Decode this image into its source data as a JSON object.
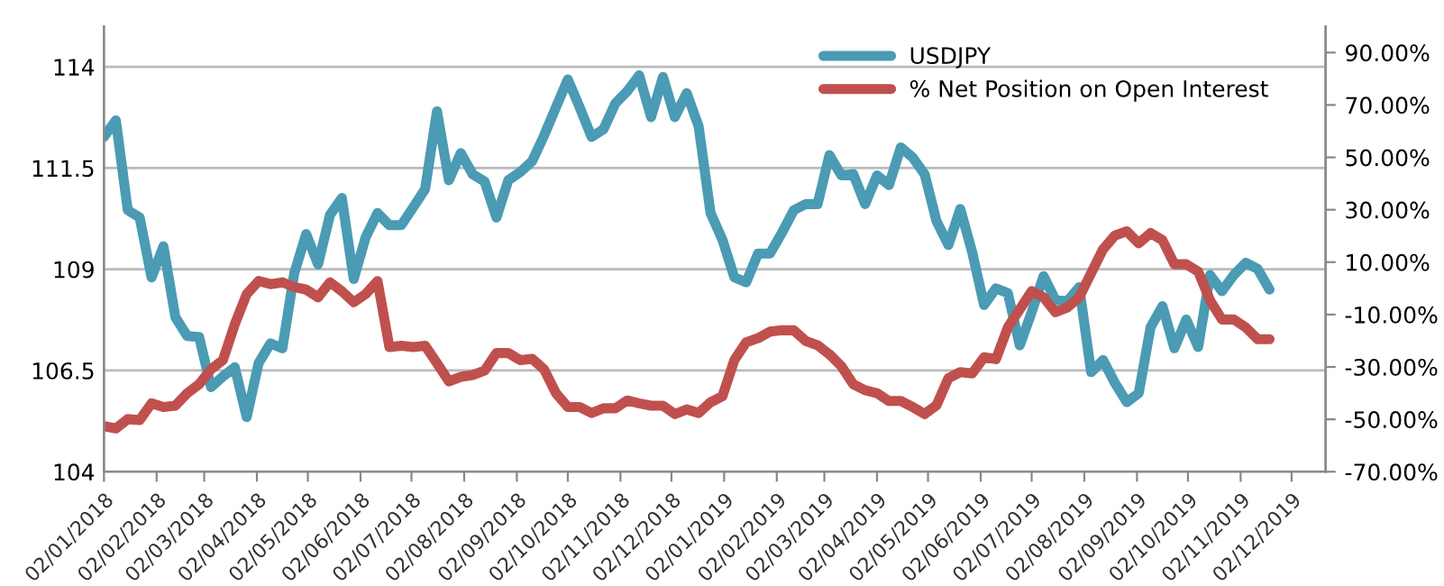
{
  "chart_data": {
    "type": "line",
    "x": [
      "2018-01-02",
      "2018-01-09",
      "2018-01-16",
      "2018-01-23",
      "2018-01-30",
      "2018-02-06",
      "2018-02-13",
      "2018-02-20",
      "2018-02-27",
      "2018-03-06",
      "2018-03-13",
      "2018-03-20",
      "2018-03-27",
      "2018-04-03",
      "2018-04-10",
      "2018-04-17",
      "2018-04-24",
      "2018-05-01",
      "2018-05-08",
      "2018-05-15",
      "2018-05-22",
      "2018-05-29",
      "2018-06-05",
      "2018-06-12",
      "2018-06-19",
      "2018-06-26",
      "2018-07-03",
      "2018-07-10",
      "2018-07-17",
      "2018-07-24",
      "2018-07-31",
      "2018-08-07",
      "2018-08-14",
      "2018-08-21",
      "2018-08-28",
      "2018-09-04",
      "2018-09-11",
      "2018-09-18",
      "2018-09-25",
      "2018-10-02",
      "2018-10-09",
      "2018-10-16",
      "2018-10-23",
      "2018-10-30",
      "2018-11-06",
      "2018-11-13",
      "2018-11-20",
      "2018-11-27",
      "2018-12-04",
      "2018-12-11",
      "2018-12-18",
      "2018-12-25",
      "2019-01-01",
      "2019-01-08",
      "2019-01-15",
      "2019-01-22",
      "2019-01-29",
      "2019-02-05",
      "2019-02-12",
      "2019-02-19",
      "2019-02-26",
      "2019-03-05",
      "2019-03-12",
      "2019-03-19",
      "2019-03-26",
      "2019-04-02",
      "2019-04-09",
      "2019-04-16",
      "2019-04-23",
      "2019-04-30",
      "2019-05-07",
      "2019-05-14",
      "2019-05-21",
      "2019-05-28",
      "2019-06-04",
      "2019-06-11",
      "2019-06-18",
      "2019-06-25",
      "2019-07-02",
      "2019-07-09",
      "2019-07-16",
      "2019-07-23",
      "2019-07-30",
      "2019-08-06",
      "2019-08-13",
      "2019-08-20",
      "2019-08-27",
      "2019-09-03",
      "2019-09-10",
      "2019-09-17",
      "2019-09-24",
      "2019-10-01",
      "2019-10-08",
      "2019-10-15",
      "2019-10-22",
      "2019-10-29",
      "2019-11-05",
      "2019-11-12",
      "2019-11-19"
    ],
    "series": [
      {
        "name": "USDJPY",
        "color": "#4a9bb3",
        "values": [
          112.27,
          112.68,
          110.46,
          110.28,
          108.8,
          109.57,
          107.82,
          107.35,
          107.33,
          106.09,
          106.35,
          106.58,
          105.35,
          106.68,
          107.17,
          107.05,
          108.9,
          109.87,
          109.12,
          110.34,
          110.76,
          108.76,
          109.79,
          110.39,
          110.09,
          110.09,
          110.53,
          110.98,
          112.9,
          111.2,
          111.87,
          111.35,
          111.17,
          110.28,
          111.2,
          111.4,
          111.67,
          112.3,
          113.0,
          113.69,
          113.0,
          112.27,
          112.46,
          113.1,
          113.4,
          113.79,
          112.76,
          113.75,
          112.76,
          113.35,
          112.53,
          110.39,
          109.73,
          108.8,
          108.68,
          109.39,
          109.39,
          109.9,
          110.46,
          110.61,
          110.61,
          111.82,
          111.32,
          111.35,
          110.61,
          111.32,
          111.08,
          112.01,
          111.76,
          111.35,
          110.19,
          109.6,
          110.49,
          109.42,
          108.12,
          108.53,
          108.41,
          107.12,
          107.94,
          108.83,
          108.24,
          108.21,
          108.56,
          106.46,
          106.76,
          106.19,
          105.72,
          105.94,
          107.57,
          108.09,
          107.05,
          107.76,
          107.08,
          108.86,
          108.46,
          108.86,
          109.16,
          109.01,
          108.5
        ]
      },
      {
        "name": "% Net Position on Open Interest",
        "color": "#c0504d",
        "axis": "y2",
        "values": [
          -52.6,
          -53.5,
          -49.9,
          -50.3,
          -43.9,
          -45.3,
          -44.8,
          -40.0,
          -36.6,
          -30.9,
          -27.4,
          -13.7,
          -2.2,
          2.8,
          1.6,
          2.3,
          0.5,
          -0.5,
          -3.4,
          2.3,
          -1.1,
          -5.3,
          -2.2,
          2.8,
          -22.4,
          -21.9,
          -22.4,
          -21.9,
          -28.6,
          -35.5,
          -33.8,
          -33.1,
          -31.4,
          -24.7,
          -24.7,
          -27.4,
          -26.9,
          -30.9,
          -40.0,
          -45.3,
          -45.3,
          -47.6,
          -45.8,
          -45.8,
          -42.8,
          -43.9,
          -44.8,
          -44.8,
          -48.0,
          -46.2,
          -47.6,
          -43.5,
          -41.2,
          -27.4,
          -20.6,
          -19.0,
          -16.5,
          -16.0,
          -16.0,
          -20.1,
          -21.7,
          -25.2,
          -29.7,
          -36.6,
          -38.9,
          -40.0,
          -43.0,
          -43.0,
          -45.3,
          -48.0,
          -44.6,
          -34.3,
          -32.0,
          -32.5,
          -26.3,
          -27.0,
          -14.9,
          -8.0,
          -1.1,
          -3.4,
          -9.1,
          -7.3,
          -3.4,
          5.8,
          14.9,
          20.2,
          21.8,
          17.2,
          21.1,
          18.4,
          9.2,
          9.2,
          6.4,
          -4.6,
          -11.9,
          -11.9,
          -14.9,
          -19.4,
          -19.4
        ]
      }
    ],
    "xlim": [
      "2018-01-02",
      "2019-12-22"
    ],
    "xticks": [
      {
        "value": "2018-01-02",
        "label": "02/01/2018"
      },
      {
        "value": "2018-02-02",
        "label": "02/02/2018"
      },
      {
        "value": "2018-03-02",
        "label": "02/03/2018"
      },
      {
        "value": "2018-04-02",
        "label": "02/04/2018"
      },
      {
        "value": "2018-05-02",
        "label": "02/05/2018"
      },
      {
        "value": "2018-06-02",
        "label": "02/06/2018"
      },
      {
        "value": "2018-07-02",
        "label": "02/07/2018"
      },
      {
        "value": "2018-08-02",
        "label": "02/08/2018"
      },
      {
        "value": "2018-09-02",
        "label": "02/09/2018"
      },
      {
        "value": "2018-10-02",
        "label": "02/10/2018"
      },
      {
        "value": "2018-11-02",
        "label": "02/11/2018"
      },
      {
        "value": "2018-12-02",
        "label": "02/12/2018"
      },
      {
        "value": "2019-01-02",
        "label": "02/01/2019"
      },
      {
        "value": "2019-02-02",
        "label": "02/02/2019"
      },
      {
        "value": "2019-03-02",
        "label": "02/03/2019"
      },
      {
        "value": "2019-04-02",
        "label": "02/04/2019"
      },
      {
        "value": "2019-05-02",
        "label": "02/05/2019"
      },
      {
        "value": "2019-06-02",
        "label": "02/06/2019"
      },
      {
        "value": "2019-07-02",
        "label": "02/07/2019"
      },
      {
        "value": "2019-08-02",
        "label": "02/08/2019"
      },
      {
        "value": "2019-09-02",
        "label": "02/09/2019"
      },
      {
        "value": "2019-10-02",
        "label": "02/10/2019"
      },
      {
        "value": "2019-11-02",
        "label": "02/11/2019"
      },
      {
        "value": "2019-12-02",
        "label": "02/12/2019"
      }
    ],
    "ylim": [
      104,
      115
    ],
    "yticks": [
      104,
      106.5,
      109,
      111.5,
      114
    ],
    "y2lim": [
      -70,
      100
    ],
    "y2ticks": [
      {
        "value": -70,
        "label": "-70.00%"
      },
      {
        "value": -50,
        "label": "-50.00%"
      },
      {
        "value": -30,
        "label": "-30.00%"
      },
      {
        "value": -10,
        "label": "-10.00%"
      },
      {
        "value": 10,
        "label": "10.00%"
      },
      {
        "value": 30,
        "label": "30.00%"
      },
      {
        "value": 50,
        "label": "50.00%"
      },
      {
        "value": 70,
        "label": "70.00%"
      },
      {
        "value": 90,
        "label": "90.00%"
      }
    ],
    "grid": "y",
    "legend": "top right",
    "line_style": "solid",
    "marker": "none"
  }
}
